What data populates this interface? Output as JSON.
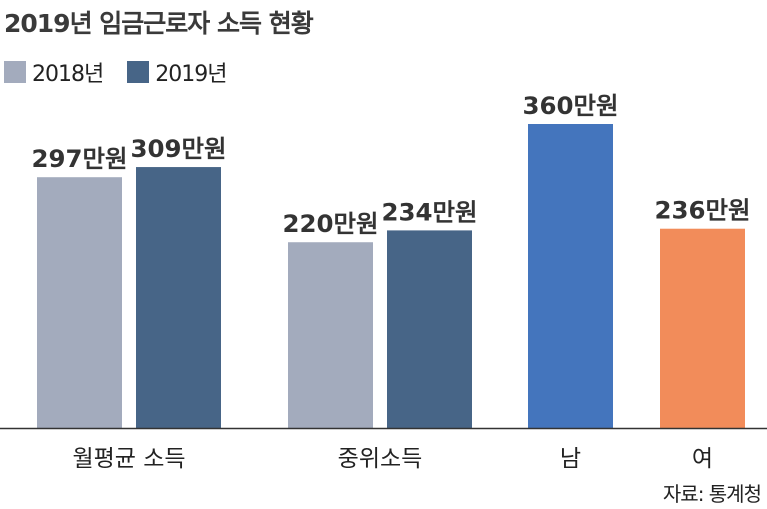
{
  "title": "2019년 임금근로자 소득 현황",
  "source": "자료: 통계청",
  "legend": [
    {
      "label": "2018년",
      "color": "#a3abbd"
    },
    {
      "label": "2019년",
      "color": "#476587"
    }
  ],
  "chart_data": {
    "type": "bar",
    "title": "2019년 임금근로자 소득 현황",
    "xlabel": "",
    "ylabel": "",
    "unit": "만원",
    "ylim": [
      0,
      360
    ],
    "grid": false,
    "legend_position": "top-left",
    "groups": [
      {
        "category": "월평균 소득",
        "bars": [
          {
            "series": "2018년",
            "value": 297,
            "label": "297만원",
            "color": "#a3abbd"
          },
          {
            "series": "2019년",
            "value": 309,
            "label": "309만원",
            "color": "#476587"
          }
        ]
      },
      {
        "category": "중위소득",
        "bars": [
          {
            "series": "2018년",
            "value": 220,
            "label": "220만원",
            "color": "#a3abbd"
          },
          {
            "series": "2019년",
            "value": 234,
            "label": "234만원",
            "color": "#476587"
          }
        ]
      },
      {
        "category": "남",
        "bars": [
          {
            "value": 360,
            "label": "360만원",
            "color": "#4475bd"
          }
        ]
      },
      {
        "category": "여",
        "bars": [
          {
            "value": 236,
            "label": "236만원",
            "color": "#f28c5a"
          }
        ]
      }
    ]
  }
}
